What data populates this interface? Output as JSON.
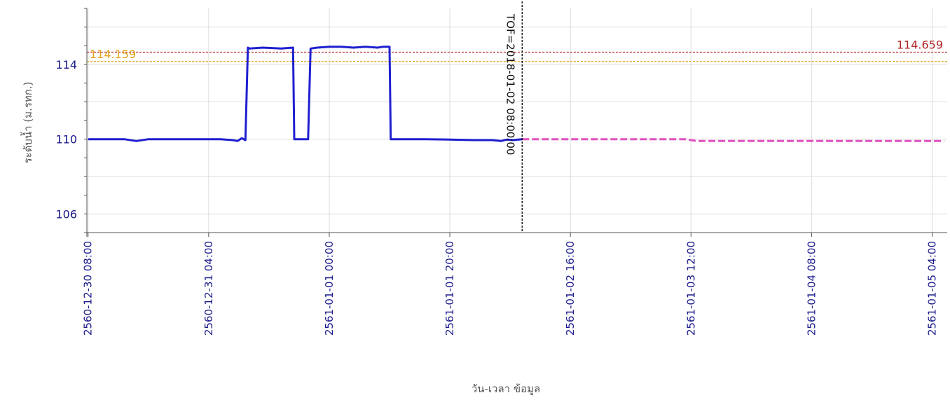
{
  "chart_data": {
    "type": "line",
    "title": "",
    "xlabel": "วัน-เวลา ข้อมูล",
    "ylabel": "ระดับน้ำ (ม.รทก.)",
    "ylim": [
      105,
      117
    ],
    "y_ticks": [
      106,
      110,
      114
    ],
    "x_ticks": [
      {
        "hours": 0,
        "label": "2560-12-30 08:00"
      },
      {
        "hours": 20,
        "label": "2560-12-31 04:00"
      },
      {
        "hours": 40,
        "label": "2561-01-01 00:00"
      },
      {
        "hours": 60,
        "label": "2561-01-01 20:00"
      },
      {
        "hours": 80,
        "label": "2561-01-02 16:00"
      },
      {
        "hours": 100,
        "label": "2561-01-03 12:00"
      },
      {
        "hours": 120,
        "label": "2561-01-04 08:00"
      },
      {
        "hours": 140,
        "label": "2561-01-05 04:00"
      }
    ],
    "xlim_hours": [
      -0.2,
      142.5
    ],
    "grid": true,
    "thresholds": [
      {
        "label": "114.659",
        "value": 114.659,
        "color": "#b22222",
        "label_position": "right"
      },
      {
        "label": "114.159",
        "value": 114.159,
        "color": "#e3a21a",
        "label_position": "left"
      }
    ],
    "tof_marker": {
      "label": "TOF=2018-01-02 08:00:00",
      "hours": 72
    },
    "series": [
      {
        "role": "observed",
        "color": "#1f1fd0",
        "x_hours": [
          0,
          3,
          6,
          8,
          10,
          12,
          15,
          18,
          20,
          22,
          24,
          24.8,
          25.5,
          26.1,
          26.5,
          26.8,
          29,
          32,
          34,
          34.2,
          36.5,
          36.9,
          38,
          40,
          42,
          44,
          46,
          48,
          49,
          50,
          50.2,
          53,
          56,
          60,
          64,
          67,
          68.5,
          69.5,
          70.5,
          72
        ],
        "values": [
          110.0,
          110.0,
          110.0,
          109.9,
          110.0,
          110.0,
          110.0,
          110.0,
          110.0,
          110.0,
          109.95,
          109.9,
          110.05,
          109.95,
          114.9,
          114.85,
          114.9,
          114.85,
          114.9,
          110.0,
          110.0,
          114.85,
          114.9,
          114.95,
          114.95,
          114.9,
          114.95,
          114.9,
          114.95,
          114.95,
          110.0,
          110.0,
          110.0,
          109.98,
          109.95,
          109.95,
          109.9,
          109.98,
          109.95,
          110.0
        ]
      },
      {
        "role": "forecast",
        "color": "#e052c0",
        "x_hours": [
          72,
          80,
          90,
          99,
          100,
          101,
          110,
          120,
          130,
          140,
          142
        ],
        "values": [
          110.0,
          110.0,
          110.0,
          110.0,
          109.95,
          109.9,
          109.9,
          109.9,
          109.9,
          109.9,
          109.9
        ]
      }
    ]
  }
}
